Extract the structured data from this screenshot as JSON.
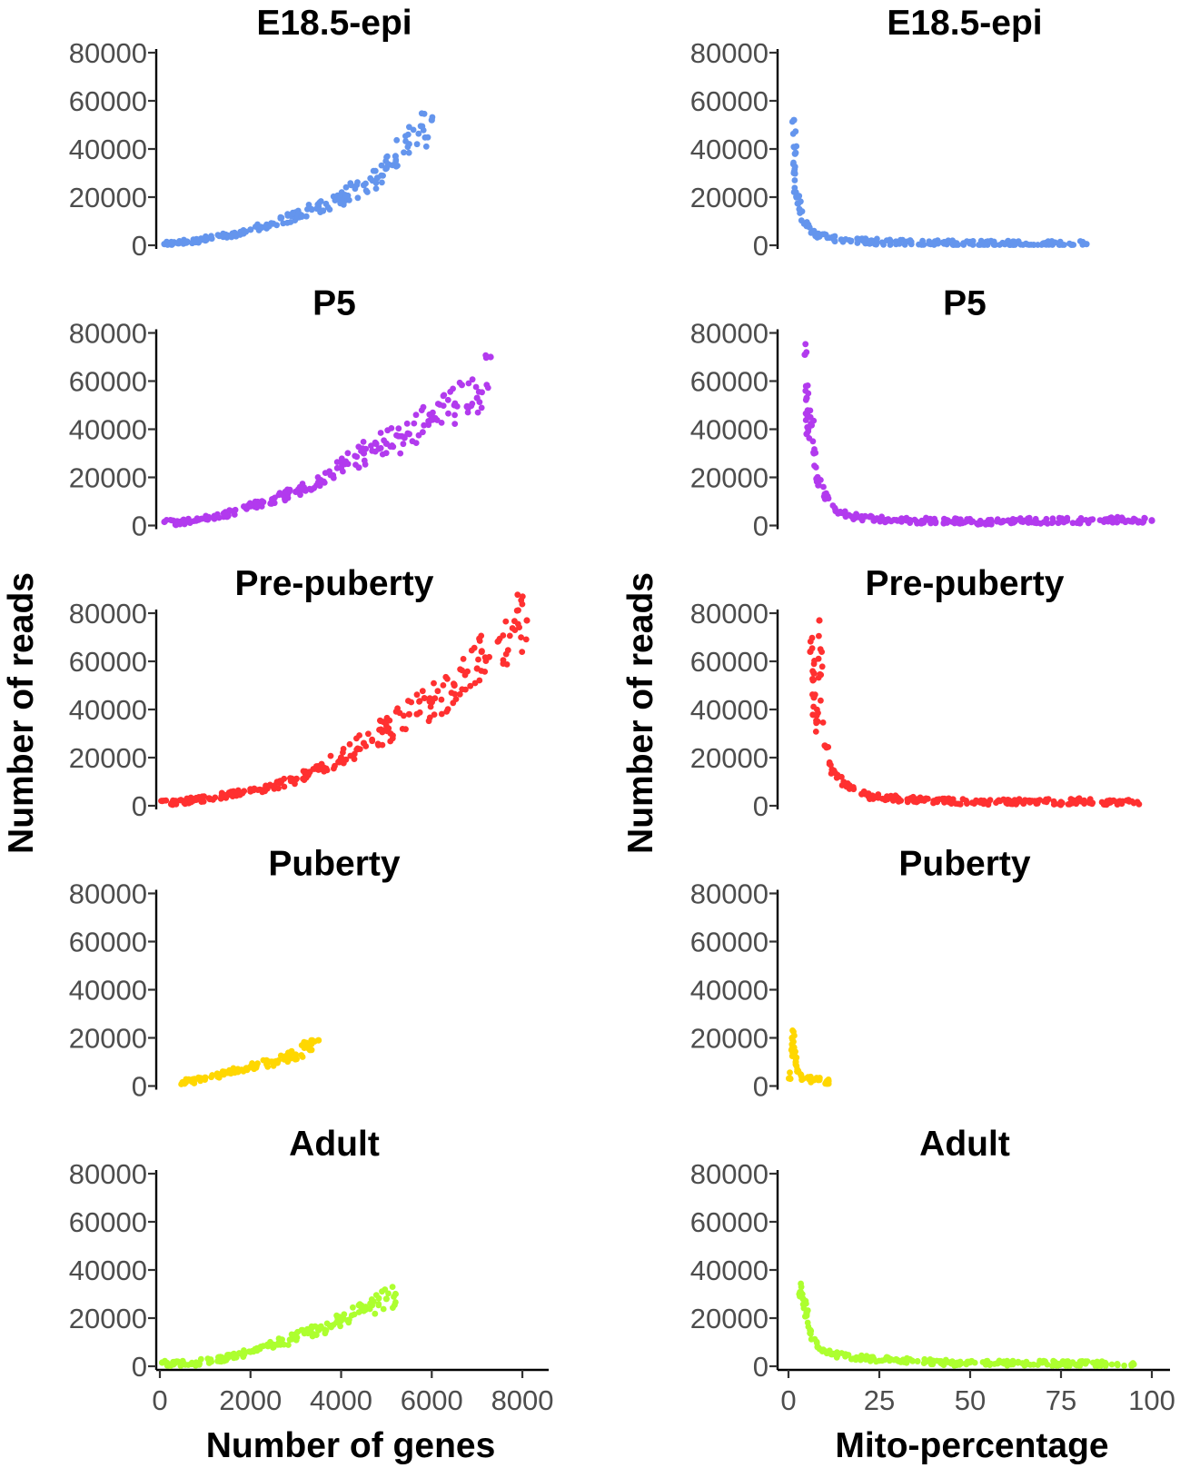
{
  "chart_data": [
    {
      "type": "scatter",
      "facet_column": "left",
      "xlabel": "Number of genes",
      "ylabel": "Number of reads",
      "xlim": [
        0,
        8500
      ],
      "ylim": [
        0,
        80000
      ],
      "x_ticks": [
        0,
        2000,
        4000,
        6000,
        8000
      ],
      "x_tick_labels": [
        "0",
        "2000",
        "4000",
        "6000",
        "8000"
      ],
      "y_ticks": [
        0,
        20000,
        40000,
        60000,
        80000
      ],
      "y_tick_labels": [
        "0",
        "20000",
        "40000",
        "60000",
        "80000"
      ],
      "grid": false,
      "legend": "none",
      "panels": [
        {
          "title": "E18.5-epi",
          "color": "#6495ED",
          "points": [
            [
              100,
              500
            ],
            [
              300,
              900
            ],
            [
              600,
              1500
            ],
            [
              1000,
              2500
            ],
            [
              1500,
              4000
            ],
            [
              2000,
              6500
            ],
            [
              2500,
              9000
            ],
            [
              3000,
              12500
            ],
            [
              3500,
              16000
            ],
            [
              4000,
              20000
            ],
            [
              4500,
              25000
            ],
            [
              4800,
              28000
            ],
            [
              5000,
              32000
            ],
            [
              5200,
              37000
            ],
            [
              6000,
              52000
            ]
          ]
        },
        {
          "title": "P5",
          "color": "#B23AEE",
          "points": [
            [
              100,
              1500
            ],
            [
              400,
              1200
            ],
            [
              800,
              2000
            ],
            [
              1500,
              5000
            ],
            [
              2000,
              8000
            ],
            [
              2500,
              11000
            ],
            [
              3000,
              14000
            ],
            [
              3500,
              18000
            ],
            [
              4000,
              24000
            ],
            [
              4500,
              30000
            ],
            [
              5000,
              34000
            ],
            [
              5500,
              38000
            ],
            [
              6000,
              45000
            ],
            [
              6500,
              50000
            ],
            [
              7000,
              53000
            ],
            [
              7300,
              70000
            ]
          ]
        },
        {
          "title": "Pre-puberty",
          "color": "#FF3030",
          "points": [
            [
              50,
              2000
            ],
            [
              300,
              1500
            ],
            [
              800,
              2500
            ],
            [
              1500,
              4500
            ],
            [
              2000,
              6000
            ],
            [
              2500,
              8000
            ],
            [
              3000,
              11000
            ],
            [
              3500,
              15000
            ],
            [
              4000,
              20000
            ],
            [
              4500,
              26000
            ],
            [
              5000,
              32000
            ],
            [
              5500,
              38000
            ],
            [
              6000,
              43000
            ],
            [
              6500,
              50000
            ],
            [
              7000,
              57000
            ],
            [
              7100,
              64000
            ],
            [
              8100,
              77000
            ]
          ]
        },
        {
          "title": "Puberty",
          "color": "#FFD700",
          "points": [
            [
              500,
              1500
            ],
            [
              700,
              2000
            ],
            [
              1000,
              3500
            ],
            [
              1500,
              5500
            ],
            [
              2000,
              8000
            ],
            [
              2500,
              10000
            ],
            [
              3000,
              13000
            ],
            [
              3300,
              16500
            ],
            [
              3500,
              19000
            ]
          ]
        },
        {
          "title": "Adult",
          "color": "#ADFF2F",
          "points": [
            [
              50,
              1500
            ],
            [
              300,
              800
            ],
            [
              800,
              1500
            ],
            [
              1500,
              3500
            ],
            [
              2000,
              6000
            ],
            [
              2500,
              9000
            ],
            [
              3000,
              12000
            ],
            [
              3500,
              15000
            ],
            [
              4000,
              19000
            ],
            [
              4500,
              23000
            ],
            [
              5000,
              28000
            ],
            [
              5200,
              30000
            ]
          ]
        }
      ]
    },
    {
      "type": "scatter",
      "facet_column": "right",
      "xlabel": "Mito-percentage",
      "ylabel": "Number of reads",
      "xlim": [
        -2,
        104
      ],
      "ylim": [
        0,
        80000
      ],
      "x_ticks": [
        0,
        25,
        50,
        75,
        100
      ],
      "x_tick_labels": [
        "0",
        "25",
        "50",
        "75",
        "100"
      ],
      "y_ticks": [
        0,
        20000,
        40000,
        60000,
        80000
      ],
      "y_tick_labels": [
        "0",
        "20000",
        "40000",
        "60000",
        "80000"
      ],
      "grid": false,
      "legend": "none",
      "panels": [
        {
          "title": "E18.5-epi",
          "color": "#6495ED",
          "points": [
            [
              1.5,
              52000
            ],
            [
              1.8,
              38000
            ],
            [
              1.5,
              30000
            ],
            [
              2,
              22000
            ],
            [
              3,
              15000
            ],
            [
              5,
              8000
            ],
            [
              8,
              4000
            ],
            [
              15,
              2000
            ],
            [
              30,
              1200
            ],
            [
              50,
              800
            ],
            [
              70,
              600
            ],
            [
              82,
              500
            ]
          ]
        },
        {
          "title": "P5",
          "color": "#B23AEE",
          "points": [
            [
              4.5,
              71000
            ],
            [
              5,
              53000
            ],
            [
              6,
              45000
            ],
            [
              5,
              38000
            ],
            [
              7,
              30000
            ],
            [
              8,
              20000
            ],
            [
              10,
              12000
            ],
            [
              13,
              6000
            ],
            [
              20,
              3000
            ],
            [
              30,
              2000
            ],
            [
              40,
              2000
            ],
            [
              55,
              1500
            ],
            [
              65,
              2000
            ],
            [
              80,
              2000
            ],
            [
              92,
              2500
            ],
            [
              100,
              2000
            ]
          ]
        },
        {
          "title": "Pre-puberty",
          "color": "#FF3030",
          "points": [
            [
              8.5,
              77000
            ],
            [
              6,
              64000
            ],
            [
              7,
              55000
            ],
            [
              7,
              45000
            ],
            [
              8,
              35000
            ],
            [
              10,
              25000
            ],
            [
              12,
              15000
            ],
            [
              16,
              8000
            ],
            [
              22,
              4000
            ],
            [
              30,
              3000
            ],
            [
              40,
              2000
            ],
            [
              55,
              1500
            ],
            [
              67,
              2000
            ],
            [
              75,
              1500
            ],
            [
              80,
              2000
            ],
            [
              88,
              1500
            ],
            [
              96,
              1500
            ]
          ]
        },
        {
          "title": "Puberty",
          "color": "#FFD700",
          "points": [
            [
              0.5,
              3000
            ],
            [
              1,
              20000
            ],
            [
              1.5,
              16000
            ],
            [
              2,
              10000
            ],
            [
              2.5,
              6000
            ],
            [
              4,
              3000
            ],
            [
              7,
              2500
            ],
            [
              11,
              2000
            ]
          ]
        },
        {
          "title": "Adult",
          "color": "#ADFF2F",
          "points": [
            [
              3,
              30000
            ],
            [
              4,
              28000
            ],
            [
              5,
              22000
            ],
            [
              6,
              15000
            ],
            [
              8,
              8000
            ],
            [
              12,
              5000
            ],
            [
              20,
              3500
            ],
            [
              30,
              2500
            ],
            [
              45,
              1500
            ],
            [
              60,
              1200
            ],
            [
              75,
              1000
            ],
            [
              95,
              800
            ]
          ]
        }
      ]
    }
  ]
}
